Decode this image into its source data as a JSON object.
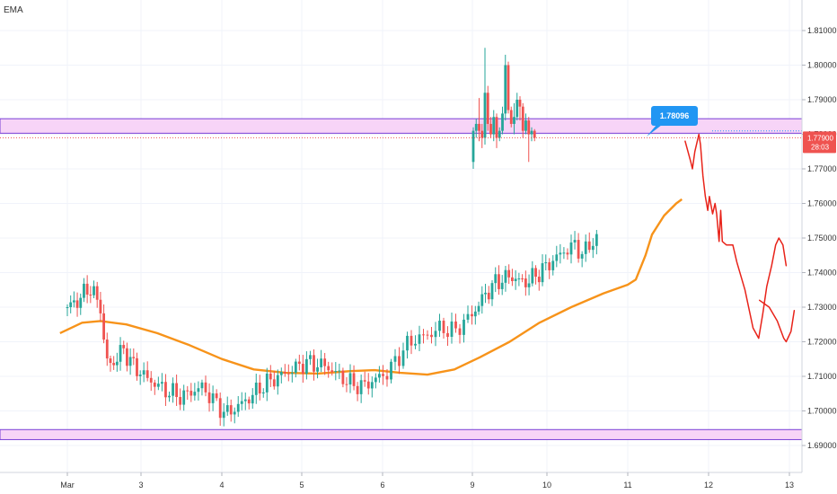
{
  "chart_data": {
    "type": "candlestick",
    "indicator_label": "EMA",
    "ylim": [
      1.6875,
      1.8125
    ],
    "y_ticks": [
      "1.81000",
      "1.80000",
      "1.79000",
      "1.78000",
      "1.77000",
      "1.76000",
      "1.75000",
      "1.74000",
      "1.73000",
      "1.72000",
      "1.71000",
      "1.70000",
      "1.69000"
    ],
    "x_ticks": [
      {
        "label": "Mar",
        "day": 1
      },
      {
        "label": "3",
        "day": 3
      },
      {
        "label": "4",
        "day": 4
      },
      {
        "label": "5",
        "day": 5
      },
      {
        "label": "6",
        "day": 6
      },
      {
        "label": "9",
        "day": 9
      },
      {
        "label": "10",
        "day": 10
      },
      {
        "label": "11",
        "day": 11
      },
      {
        "label": "12",
        "day": 12
      },
      {
        "label": "13",
        "day": 13
      }
    ],
    "price_label": {
      "value": "1.77900",
      "countdown": "28:03",
      "price": 1.779,
      "color": "#ef5350"
    },
    "annotation": {
      "text": "1.78096",
      "price": 1.78096,
      "color": "#2196f3"
    },
    "zones": [
      {
        "from": 1.7803,
        "to": 1.7845,
        "fill": "#f7d4f7",
        "border": "#7a3fd6"
      },
      {
        "from": 1.6917,
        "to": 1.6946,
        "fill": "#f7d4f7",
        "border": "#7a3fd6"
      }
    ],
    "candle_colors": {
      "up": "#26a69a",
      "down": "#ef5350"
    },
    "ema_color": "#f7931a",
    "drawing_color": "#e8231a",
    "candle_anchors": [
      [
        0.0,
        1.73
      ],
      [
        0.15,
        1.732
      ],
      [
        0.3,
        1.736
      ],
      [
        0.45,
        1.73
      ],
      [
        0.52,
        1.715
      ],
      [
        0.6,
        1.713
      ],
      [
        0.75,
        1.718
      ],
      [
        0.9,
        1.713
      ],
      [
        1.1,
        1.709
      ],
      [
        1.3,
        1.706
      ],
      [
        1.5,
        1.704
      ],
      [
        1.75,
        1.707
      ],
      [
        2.05,
        1.699
      ],
      [
        2.3,
        1.703
      ],
      [
        2.55,
        1.708
      ],
      [
        2.8,
        1.711
      ],
      [
        3.05,
        1.714
      ],
      [
        3.3,
        1.713
      ],
      [
        3.6,
        1.708
      ],
      [
        3.75,
        1.707
      ],
      [
        4.05,
        1.711
      ],
      [
        4.3,
        1.72
      ],
      [
        4.5,
        1.722
      ],
      [
        4.65,
        1.724
      ],
      [
        4.8,
        1.723
      ],
      [
        5.0,
        1.728
      ],
      [
        5.15,
        1.733
      ],
      [
        5.3,
        1.737
      ],
      [
        5.5,
        1.739
      ],
      [
        5.7,
        1.737
      ],
      [
        5.9,
        1.74
      ],
      [
        6.05,
        1.743
      ],
      [
        6.2,
        1.746
      ],
      [
        6.35,
        1.748
      ],
      [
        6.45,
        1.745
      ],
      [
        6.55,
        1.749
      ],
      [
        6.65,
        1.75
      ]
    ],
    "day9_candles": [
      [
        1.772,
        1.781,
        1.77,
        1.782
      ],
      [
        1.781,
        1.783,
        1.779,
        1.7845
      ],
      [
        1.783,
        1.781,
        1.778,
        1.7905
      ],
      [
        1.781,
        1.779,
        1.776,
        1.783
      ],
      [
        1.779,
        1.792,
        1.777,
        1.805
      ],
      [
        1.792,
        1.783,
        1.781,
        1.794
      ],
      [
        1.783,
        1.78,
        1.779,
        1.785
      ],
      [
        1.78,
        1.785,
        1.778,
        1.787
      ],
      [
        1.785,
        1.779,
        1.776,
        1.786
      ],
      [
        1.779,
        1.781,
        1.778,
        1.782
      ],
      [
        1.781,
        1.786,
        1.78,
        1.788
      ],
      [
        1.786,
        1.8,
        1.784,
        1.803
      ],
      [
        1.8,
        1.787,
        1.786,
        1.801
      ],
      [
        1.787,
        1.783,
        1.782,
        1.788
      ],
      [
        1.783,
        1.785,
        1.78,
        1.789
      ],
      [
        1.785,
        1.79,
        1.784,
        1.792
      ],
      [
        1.79,
        1.788,
        1.784,
        1.791
      ],
      [
        1.788,
        1.781,
        1.779,
        1.789
      ],
      [
        1.781,
        1.784,
        1.78,
        1.786
      ],
      [
        1.784,
        1.78,
        1.772,
        1.785
      ],
      [
        1.78,
        1.781,
        1.778,
        1.782
      ],
      [
        1.781,
        1.779,
        1.778,
        1.7815
      ]
    ],
    "ema_points": [
      [
        -0.1,
        1.7225
      ],
      [
        0.2,
        1.7255
      ],
      [
        0.45,
        1.726
      ],
      [
        0.8,
        1.725
      ],
      [
        1.2,
        1.7225
      ],
      [
        1.6,
        1.719
      ],
      [
        2.0,
        1.715
      ],
      [
        2.4,
        1.712
      ],
      [
        2.8,
        1.711
      ],
      [
        3.2,
        1.7108
      ],
      [
        3.6,
        1.7115
      ],
      [
        3.9,
        1.7118
      ],
      [
        4.2,
        1.711
      ],
      [
        4.5,
        1.7105
      ],
      [
        4.8,
        1.712
      ],
      [
        5.1,
        1.7155
      ],
      [
        5.5,
        1.72
      ],
      [
        5.9,
        1.7255
      ],
      [
        6.3,
        1.73
      ],
      [
        6.7,
        1.734
      ],
      [
        7.0,
        1.7365
      ],
      [
        7.1,
        1.738
      ],
      [
        7.22,
        1.745
      ],
      [
        7.3,
        1.751
      ],
      [
        7.45,
        1.7565
      ],
      [
        7.6,
        1.76
      ],
      [
        7.67,
        1.7612
      ]
    ],
    "drawing_points": [
      [
        7.71,
        1.778
      ],
      [
        7.78,
        1.772
      ],
      [
        7.8,
        1.77
      ],
      [
        7.83,
        1.775
      ],
      [
        7.88,
        1.78
      ],
      [
        7.9,
        1.777
      ],
      [
        7.93,
        1.768
      ],
      [
        7.96,
        1.762
      ],
      [
        7.99,
        1.758
      ],
      [
        8.01,
        1.762
      ],
      [
        8.05,
        1.757
      ],
      [
        8.08,
        1.76
      ],
      [
        8.1,
        1.757
      ],
      [
        8.13,
        1.749
      ],
      [
        8.15,
        1.758
      ],
      [
        8.17,
        1.749
      ],
      [
        8.22,
        1.748
      ],
      [
        8.3,
        1.748
      ],
      [
        8.35,
        1.743
      ],
      [
        8.45,
        1.735
      ],
      [
        8.55,
        1.724
      ],
      [
        8.62,
        1.721
      ],
      [
        8.67,
        1.728
      ],
      [
        8.72,
        1.736
      ],
      [
        8.78,
        1.742
      ],
      [
        8.83,
        1.748
      ],
      [
        8.87,
        1.75
      ],
      [
        8.92,
        1.748
      ],
      [
        8.96,
        1.742
      ]
    ],
    "drawing_points_2": [
      [
        8.63,
        1.732
      ],
      [
        8.75,
        1.73
      ],
      [
        8.85,
        1.726
      ],
      [
        8.93,
        1.721
      ],
      [
        8.96,
        1.72
      ],
      [
        9.02,
        1.723
      ],
      [
        9.06,
        1.729
      ]
    ]
  }
}
